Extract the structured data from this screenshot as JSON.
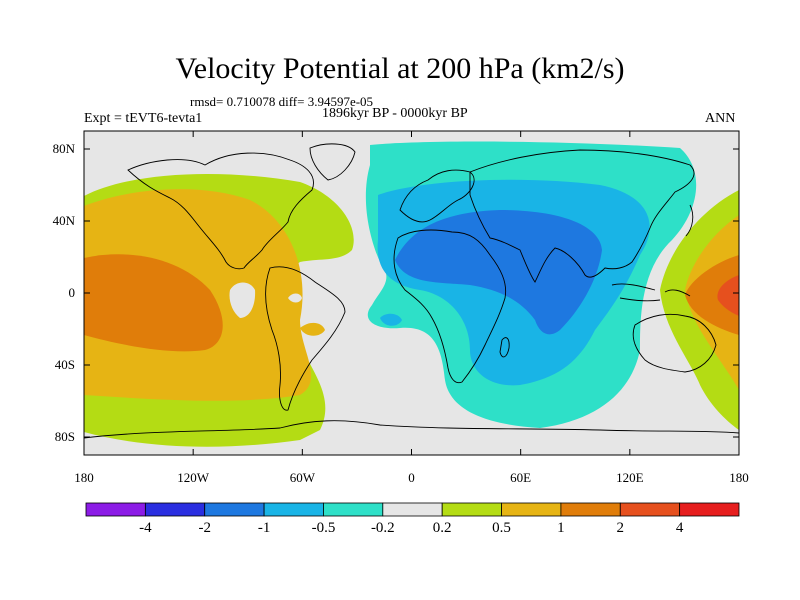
{
  "header": {
    "title": "Velocity Potential at 200 hPa (km2/s)",
    "stats": "rmsd= 0.710078 diff= 3.94597e-05",
    "period": "1896kyr BP - 0000kyr BP",
    "experiment": "Expt = tEVT6-tevta1",
    "season": "ANN"
  },
  "axes": {
    "y_ticks": [
      {
        "label": "80N",
        "lat": 80
      },
      {
        "label": "40N",
        "lat": 40
      },
      {
        "label": "0",
        "lat": 0
      },
      {
        "label": "40S",
        "lat": -40
      },
      {
        "label": "80S",
        "lat": -80
      }
    ],
    "x_ticks": [
      {
        "label": "180",
        "lon": -180
      },
      {
        "label": "120W",
        "lon": -120
      },
      {
        "label": "60W",
        "lon": -60
      },
      {
        "label": "0",
        "lon": 0
      },
      {
        "label": "60E",
        "lon": 60
      },
      {
        "label": "120E",
        "lon": 120
      },
      {
        "label": "180",
        "lon": 180
      }
    ]
  },
  "colorbar": {
    "colors": [
      "#8c1ce6",
      "#2a2ee0",
      "#1e78e0",
      "#19b4e6",
      "#2ee0c8",
      "#e6e6e6",
      "#b4dc14",
      "#e6b414",
      "#e07d0a",
      "#e6501e",
      "#e61e1e"
    ],
    "labels": [
      "-4",
      "-2",
      "-1",
      "-0.5",
      "-0.2",
      "0.2",
      "0.5",
      "1",
      "2",
      "4"
    ]
  }
}
